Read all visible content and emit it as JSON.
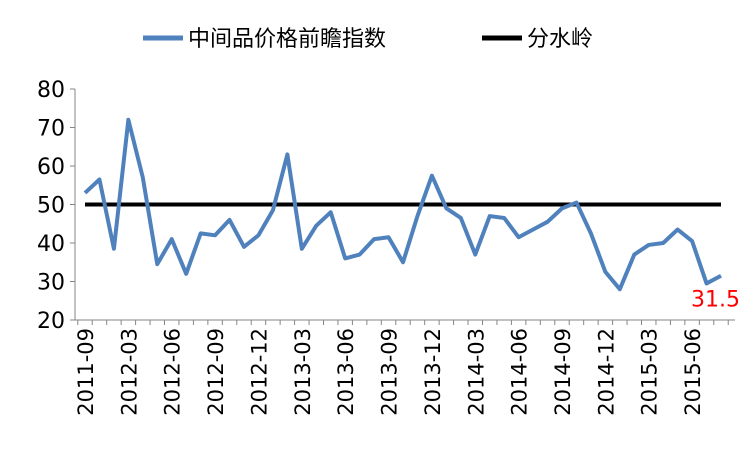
{
  "chart_data": {
    "type": "line",
    "categories": [
      "2011-09",
      null,
      null,
      "2012-03",
      null,
      null,
      "2012-06",
      null,
      null,
      "2012-09",
      null,
      null,
      "2012-12",
      null,
      null,
      "2013-03",
      null,
      null,
      "2013-06",
      null,
      null,
      "2013-09",
      null,
      null,
      "2013-12",
      null,
      null,
      "2014-03",
      null,
      null,
      "2014-06",
      null,
      null,
      "2014-09",
      null,
      null,
      "2014-12",
      null,
      null,
      "2015-03",
      null,
      null,
      "2015-06",
      null,
      null
    ],
    "series": [
      {
        "name": "中间品价格前瞻指数",
        "color": "#4f81bd",
        "values": [
          53,
          56.5,
          38.5,
          72,
          57,
          34.5,
          41,
          32,
          42.5,
          42,
          46,
          39,
          42,
          48.5,
          63,
          38.5,
          44.5,
          48,
          36,
          37,
          41,
          41.5,
          35,
          47,
          57.5,
          49,
          46.5,
          37,
          47,
          46.5,
          41.5,
          43.5,
          45.5,
          49,
          50.5,
          42.5,
          32.5,
          28,
          37,
          39.5,
          40,
          43.5,
          40.5,
          29.5,
          31.5
        ]
      }
    ],
    "threshold": {
      "name": "分水岭",
      "value": 50,
      "color": "#000000"
    },
    "last_label_color": "#ff0000",
    "ylim": [
      20,
      80
    ],
    "yticks": [
      20,
      30,
      40,
      50,
      60,
      70,
      80
    ],
    "grid": false,
    "legend": "top"
  }
}
